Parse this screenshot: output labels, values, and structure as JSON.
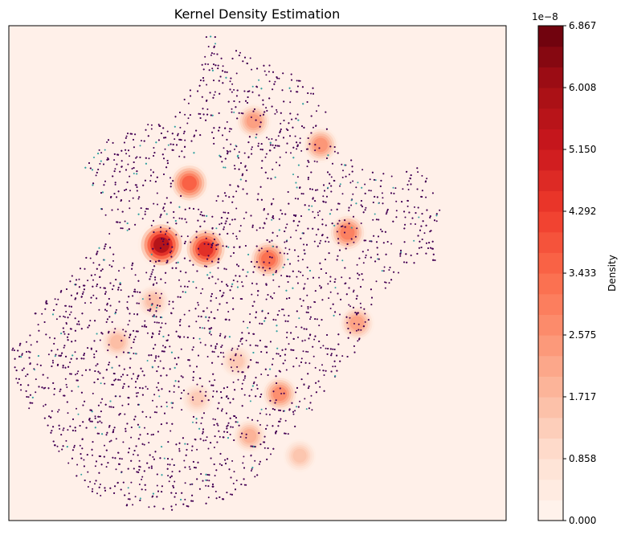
{
  "chart_data": {
    "type": "heatmap",
    "title": "Kernel Density Estimation",
    "xlabel": "",
    "ylabel": "",
    "xticks_visible": false,
    "yticks_visible": false,
    "colormap": "Reds",
    "overlay": "scatter",
    "point_color": "#440154",
    "point_color_secondary": "#31a0a0",
    "background_color": "#fff0e9",
    "colorbar": {
      "label": "Density",
      "offset_text": "1e−8",
      "vmin": 0.0,
      "vmax": 6.867,
      "levels": 24,
      "ticks": [
        "0.000",
        "0.858",
        "1.717",
        "2.575",
        "3.433",
        "4.292",
        "5.150",
        "6.008",
        "6.867"
      ],
      "tick_values": [
        0.0,
        0.858,
        1.717,
        2.575,
        3.433,
        4.292,
        5.15,
        6.008,
        6.867
      ]
    },
    "hotspots": [
      {
        "x": 0.307,
        "y": 0.443,
        "peak": 6.5
      },
      {
        "x": 0.396,
        "y": 0.451,
        "peak": 5.2
      },
      {
        "x": 0.522,
        "y": 0.472,
        "peak": 3.6
      },
      {
        "x": 0.363,
        "y": 0.318,
        "peak": 4.0
      },
      {
        "x": 0.681,
        "y": 0.418,
        "peak": 3.2
      },
      {
        "x": 0.627,
        "y": 0.241,
        "peak": 2.6
      },
      {
        "x": 0.492,
        "y": 0.193,
        "peak": 2.4
      },
      {
        "x": 0.545,
        "y": 0.744,
        "peak": 2.8
      },
      {
        "x": 0.484,
        "y": 0.829,
        "peak": 1.9
      },
      {
        "x": 0.7,
        "y": 0.601,
        "peak": 2.3
      },
      {
        "x": 0.218,
        "y": 0.639,
        "peak": 1.6
      },
      {
        "x": 0.29,
        "y": 0.557,
        "peak": 1.5
      },
      {
        "x": 0.458,
        "y": 0.678,
        "peak": 1.3
      },
      {
        "x": 0.585,
        "y": 0.869,
        "peak": 1.4
      },
      {
        "x": 0.379,
        "y": 0.754,
        "peak": 1.2
      }
    ],
    "region_outline": [
      [
        0.4,
        0.01
      ],
      [
        0.42,
        0.01
      ],
      [
        0.42,
        0.06
      ],
      [
        0.46,
        0.05
      ],
      [
        0.5,
        0.07
      ],
      [
        0.55,
        0.09
      ],
      [
        0.6,
        0.11
      ],
      [
        0.63,
        0.15
      ],
      [
        0.66,
        0.25
      ],
      [
        0.7,
        0.28
      ],
      [
        0.76,
        0.3
      ],
      [
        0.83,
        0.28
      ],
      [
        0.85,
        0.33
      ],
      [
        0.88,
        0.4
      ],
      [
        0.86,
        0.48
      ],
      [
        0.8,
        0.49
      ],
      [
        0.74,
        0.56
      ],
      [
        0.7,
        0.66
      ],
      [
        0.66,
        0.71
      ],
      [
        0.6,
        0.8
      ],
      [
        0.55,
        0.84
      ],
      [
        0.5,
        0.91
      ],
      [
        0.45,
        0.95
      ],
      [
        0.38,
        0.98
      ],
      [
        0.3,
        0.98
      ],
      [
        0.2,
        0.97
      ],
      [
        0.14,
        0.92
      ],
      [
        0.1,
        0.86
      ],
      [
        0.05,
        0.79
      ],
      [
        0.01,
        0.73
      ],
      [
        0.0,
        0.66
      ],
      [
        0.04,
        0.59
      ],
      [
        0.09,
        0.54
      ],
      [
        0.14,
        0.48
      ],
      [
        0.2,
        0.42
      ],
      [
        0.18,
        0.36
      ],
      [
        0.16,
        0.32
      ],
      [
        0.15,
        0.28
      ],
      [
        0.17,
        0.26
      ],
      [
        0.21,
        0.22
      ],
      [
        0.23,
        0.21
      ],
      [
        0.26,
        0.2
      ],
      [
        0.33,
        0.18
      ],
      [
        0.36,
        0.14
      ],
      [
        0.38,
        0.09
      ]
    ],
    "region_holes": [
      [
        [
          0.2,
          0.44
        ],
        [
          0.26,
          0.4
        ],
        [
          0.3,
          0.43
        ],
        [
          0.28,
          0.47
        ],
        [
          0.22,
          0.48
        ]
      ],
      [
        [
          0.33,
          0.28
        ],
        [
          0.4,
          0.25
        ],
        [
          0.44,
          0.32
        ],
        [
          0.4,
          0.37
        ],
        [
          0.34,
          0.34
        ]
      ]
    ]
  }
}
